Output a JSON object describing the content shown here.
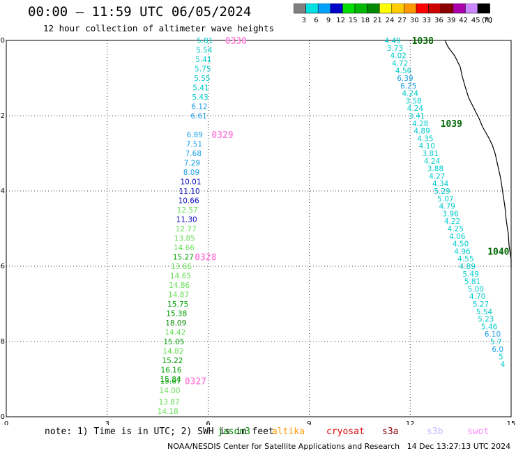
{
  "header": {
    "title": "00:00 — 11:59 UTC 06/05/2024",
    "subtitle": "12 hour collection of altimeter wave heights"
  },
  "legend": {
    "unit": "(ft)",
    "levels": [
      {
        "label": "3",
        "color": "#808080"
      },
      {
        "label": "6",
        "color": "#00e0e0"
      },
      {
        "label": "9",
        "color": "#00a0ff"
      },
      {
        "label": "12",
        "color": "#0000c8"
      },
      {
        "label": "15",
        "color": "#00dd00"
      },
      {
        "label": "18",
        "color": "#00b800"
      },
      {
        "label": "21",
        "color": "#008800"
      },
      {
        "label": "24",
        "color": "#ffff00"
      },
      {
        "label": "27",
        "color": "#ffcc00"
      },
      {
        "label": "30",
        "color": "#ff9900"
      },
      {
        "label": "33",
        "color": "#ff0000"
      },
      {
        "label": "36",
        "color": "#cc0000"
      },
      {
        "label": "39",
        "color": "#880000"
      },
      {
        "label": "42",
        "color": "#aa00aa"
      },
      {
        "label": "45",
        "color": "#cc88ff"
      },
      {
        "label": "70",
        "color": "#000000"
      }
    ]
  },
  "footer": {
    "note": "note: 1) Time is in UTC; 2) SWH is in feet",
    "missions": [
      {
        "name": "jason3",
        "color": "#008800"
      },
      {
        "name": "altika",
        "color": "#ff9900"
      },
      {
        "name": "cryosat",
        "color": "#dd0000"
      },
      {
        "name": "s3a",
        "color": "#880000"
      },
      {
        "name": "s3b",
        "color": "#c8b4ff"
      },
      {
        "name": "swot",
        "color": "#ff88ff"
      }
    ],
    "credit": "NOAA/NESDIS Center for Satellite Applications and Research   14 Dec 13:27:13 UTC 2024"
  },
  "chart_data": {
    "type": "scatter",
    "title": "00:00 — 11:59 UTC 06/05/2024",
    "subtitle": "12 hour collection of altimeter wave heights",
    "xlim": [
      0,
      15
    ],
    "ylim": [
      -30,
      -20
    ],
    "x_ticks": [
      "0",
      "3",
      "6",
      "9",
      "12",
      "15"
    ],
    "y_ticks": [
      "-30",
      "-28",
      "-26",
      "-24",
      "-22",
      "-20"
    ],
    "grid": true,
    "series": [
      {
        "name": "swot",
        "points": [
          {
            "lon": 5.9,
            "lat": -20.0,
            "v": "5.81"
          },
          {
            "lon": 5.88,
            "lat": -20.25,
            "v": "5.54"
          },
          {
            "lon": 5.86,
            "lat": -20.5,
            "v": "5.41"
          },
          {
            "lon": 5.84,
            "lat": -20.75,
            "v": "5.75"
          },
          {
            "lon": 5.82,
            "lat": -21.0,
            "v": "5.55"
          },
          {
            "lon": 5.78,
            "lat": -21.25,
            "v": "5.41"
          },
          {
            "lon": 5.76,
            "lat": -21.5,
            "v": "5.43"
          },
          {
            "lon": 5.74,
            "lat": -21.75,
            "v": "6.12"
          },
          {
            "lon": 5.72,
            "lat": -22.0,
            "v": "6.61"
          },
          {
            "lon": 5.6,
            "lat": -22.5,
            "v": "6.89"
          },
          {
            "lon": 5.58,
            "lat": -22.75,
            "v": "7.51"
          },
          {
            "lon": 5.56,
            "lat": -23.0,
            "v": "7.68"
          },
          {
            "lon": 5.52,
            "lat": -23.25,
            "v": "7.29"
          },
          {
            "lon": 5.5,
            "lat": -23.5,
            "v": "8.09"
          },
          {
            "lon": 5.48,
            "lat": -23.75,
            "v": "10.01"
          },
          {
            "lon": 5.44,
            "lat": -24.0,
            "v": "11.10"
          },
          {
            "lon": 5.42,
            "lat": -24.25,
            "v": "10.66"
          },
          {
            "lon": 5.38,
            "lat": -24.5,
            "v": "12.57"
          },
          {
            "lon": 5.36,
            "lat": -24.75,
            "v": "11.30"
          },
          {
            "lon": 5.34,
            "lat": -25.0,
            "v": "12.77"
          },
          {
            "lon": 5.3,
            "lat": -25.25,
            "v": "13.85"
          },
          {
            "lon": 5.28,
            "lat": -25.5,
            "v": "14.66"
          },
          {
            "lon": 5.26,
            "lat": -25.75,
            "v": "15.27"
          },
          {
            "lon": 5.2,
            "lat": -26.0,
            "v": "13.66"
          },
          {
            "lon": 5.18,
            "lat": -26.25,
            "v": "14.65"
          },
          {
            "lon": 5.14,
            "lat": -26.5,
            "v": "14.86"
          },
          {
            "lon": 5.12,
            "lat": -26.75,
            "v": "14.87"
          },
          {
            "lon": 5.1,
            "lat": -27.0,
            "v": "15.75"
          },
          {
            "lon": 5.06,
            "lat": -27.25,
            "v": "15.38"
          },
          {
            "lon": 5.04,
            "lat": -27.5,
            "v": "18.09"
          },
          {
            "lon": 5.02,
            "lat": -27.75,
            "v": "14.42"
          },
          {
            "lon": 4.98,
            "lat": -28.0,
            "v": "15.05"
          },
          {
            "lon": 4.96,
            "lat": -28.25,
            "v": "14.82"
          },
          {
            "lon": 4.94,
            "lat": -28.5,
            "v": "15.22"
          },
          {
            "lon": 4.9,
            "lat": -28.75,
            "v": "16.16"
          },
          {
            "lon": 4.88,
            "lat": -29.0,
            "v": "15.84"
          },
          {
            "lon": 4.88,
            "lat": -29.05,
            "v": "15.67"
          },
          {
            "lon": 4.86,
            "lat": -29.3,
            "v": "14.00"
          },
          {
            "lon": 4.84,
            "lat": -29.6,
            "v": "13.87"
          },
          {
            "lon": 4.8,
            "lat": -29.85,
            "v": "14.18"
          }
        ],
        "hour_labels": [
          {
            "lon": 6.5,
            "lat": -20.0,
            "t": "0330",
            "color": "#ff88dd"
          },
          {
            "lon": 6.1,
            "lat": -22.5,
            "t": "0329",
            "color": "#ff88dd"
          },
          {
            "lon": 5.6,
            "lat": -25.75,
            "t": "0328",
            "color": "#ff88dd"
          },
          {
            "lon": 5.3,
            "lat": -29.05,
            "t": "0327",
            "color": "#ff88dd"
          }
        ]
      },
      {
        "name": "jason3",
        "points": [
          {
            "lon": 11.48,
            "lat": -20.0,
            "v": "4.49"
          },
          {
            "lon": 11.55,
            "lat": -20.2,
            "v": "3.73"
          },
          {
            "lon": 11.65,
            "lat": -20.4,
            "v": "4.02"
          },
          {
            "lon": 11.7,
            "lat": -20.6,
            "v": "4.72"
          },
          {
            "lon": 11.8,
            "lat": -20.8,
            "v": "4.56"
          },
          {
            "lon": 11.85,
            "lat": -21.0,
            "v": "6.39"
          },
          {
            "lon": 11.95,
            "lat": -21.2,
            "v": "6.25"
          },
          {
            "lon": 12.0,
            "lat": -21.4,
            "v": "4.24"
          },
          {
            "lon": 12.1,
            "lat": -21.6,
            "v": "3.58"
          },
          {
            "lon": 12.15,
            "lat": -21.8,
            "v": "4.24"
          },
          {
            "lon": 12.2,
            "lat": -22.0,
            "v": "3.41"
          },
          {
            "lon": 12.3,
            "lat": -22.2,
            "v": "4.28"
          },
          {
            "lon": 12.35,
            "lat": -22.4,
            "v": "4.89"
          },
          {
            "lon": 12.45,
            "lat": -22.6,
            "v": "4.35"
          },
          {
            "lon": 12.5,
            "lat": -22.8,
            "v": "4.10"
          },
          {
            "lon": 12.6,
            "lat": -23.0,
            "v": "3.81"
          },
          {
            "lon": 12.65,
            "lat": -23.2,
            "v": "4.24"
          },
          {
            "lon": 12.75,
            "lat": -23.4,
            "v": "3.88"
          },
          {
            "lon": 12.8,
            "lat": -23.6,
            "v": "4.27"
          },
          {
            "lon": 12.9,
            "lat": -23.8,
            "v": "4.34"
          },
          {
            "lon": 12.95,
            "lat": -24.0,
            "v": "5.29"
          },
          {
            "lon": 13.05,
            "lat": -24.2,
            "v": "5.07"
          },
          {
            "lon": 13.1,
            "lat": -24.4,
            "v": "4.79"
          },
          {
            "lon": 13.2,
            "lat": -24.6,
            "v": "3.96"
          },
          {
            "lon": 13.25,
            "lat": -24.8,
            "v": "4.22"
          },
          {
            "lon": 13.35,
            "lat": -25.0,
            "v": "4.25"
          },
          {
            "lon": 13.4,
            "lat": -25.2,
            "v": "4.06"
          },
          {
            "lon": 13.5,
            "lat": -25.4,
            "v": "4.50"
          },
          {
            "lon": 13.55,
            "lat": -25.6,
            "v": "4.96"
          },
          {
            "lon": 13.65,
            "lat": -25.8,
            "v": "4.55"
          },
          {
            "lon": 13.7,
            "lat": -26.0,
            "v": "4.89"
          },
          {
            "lon": 13.8,
            "lat": -26.2,
            "v": "5.49"
          },
          {
            "lon": 13.85,
            "lat": -26.4,
            "v": "5.81"
          },
          {
            "lon": 13.95,
            "lat": -26.6,
            "v": "5.00"
          },
          {
            "lon": 14.0,
            "lat": -26.8,
            "v": "4.70"
          },
          {
            "lon": 14.1,
            "lat": -27.0,
            "v": "5.27"
          },
          {
            "lon": 14.2,
            "lat": -27.2,
            "v": "5.54"
          },
          {
            "lon": 14.25,
            "lat": -27.4,
            "v": "5.23"
          },
          {
            "lon": 14.35,
            "lat": -27.6,
            "v": "5.46"
          },
          {
            "lon": 14.45,
            "lat": -27.8,
            "v": "6.10"
          },
          {
            "lon": 14.55,
            "lat": -28.0,
            "v": "5.7"
          },
          {
            "lon": 14.6,
            "lat": -28.2,
            "v": "6.0"
          },
          {
            "lon": 14.7,
            "lat": -28.4,
            "v": "5"
          },
          {
            "lon": 14.75,
            "lat": -28.6,
            "v": "4"
          }
        ],
        "hour_labels": [
          {
            "lon": 12.05,
            "lat": -20.0,
            "t": "1038",
            "color": "#006600"
          },
          {
            "lon": 12.9,
            "lat": -22.2,
            "t": "1039",
            "color": "#006600"
          },
          {
            "lon": 14.3,
            "lat": -25.6,
            "t": "1040",
            "color": "#006600"
          }
        ]
      }
    ]
  }
}
